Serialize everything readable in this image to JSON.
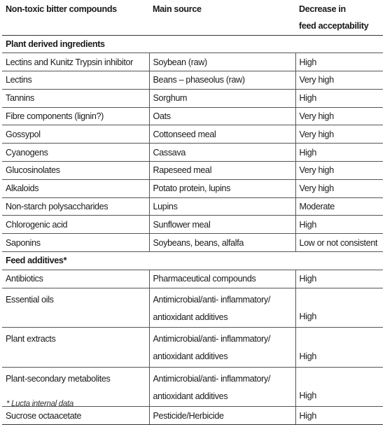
{
  "header": {
    "col1": "Non-toxic bitter compounds",
    "col2": "Main source",
    "col3_line1": "Decrease in",
    "col3_line2": "feed acceptability"
  },
  "sections": [
    {
      "title": "Plant derived ingredients",
      "rows": [
        {
          "compound": "Lectins and Kunitz Trypsin inhibitor",
          "source": "Soybean (raw)",
          "decrease": "High"
        },
        {
          "compound": "Lectins",
          "source": "Beans – phaseolus (raw)",
          "decrease": "Very high"
        },
        {
          "compound": "Tannins",
          "source": "Sorghum",
          "decrease": "High"
        },
        {
          "compound": "Fibre components (lignin?)",
          "source": "Oats",
          "decrease": "Very high"
        },
        {
          "compound": "Gossypol",
          "source": "Cottonseed meal",
          "decrease": "Very high"
        },
        {
          "compound": "Cyanogens",
          "source": "Cassava",
          "decrease": "High"
        },
        {
          "compound": "Glucosinolates",
          "source": "Rapeseed meal",
          "decrease": "Very high"
        },
        {
          "compound": "Alkaloids",
          "source": "Potato protein, lupins",
          "decrease": "Very high"
        },
        {
          "compound": "Non-starch polysaccharides",
          "source": "Lupins",
          "decrease": "Moderate"
        },
        {
          "compound": "Chlorogenic acid",
          "source": "Sunflower meal",
          "decrease": "High"
        },
        {
          "compound": "Saponins",
          "source": "Soybeans, beans, alfalfa",
          "decrease": "Low or not consistent"
        }
      ]
    },
    {
      "title": "Feed additives*",
      "rows": [
        {
          "compound": "Antibiotics",
          "source": "Pharmaceutical compounds",
          "decrease": "High"
        },
        {
          "compound": "Essential oils",
          "source_line1": "Antimicrobial/anti- inflammatory/",
          "source_line2": "antioxidant additives",
          "decrease": "High"
        },
        {
          "compound": "Plant extracts",
          "source_line1": "Antimicrobial/anti- inflammatory/",
          "source_line2": "antioxidant additives",
          "decrease": "High"
        },
        {
          "compound": "Plant-secondary metabolites",
          "source_line1": "Antimicrobial/anti- inflammatory/",
          "source_line2": "antioxidant additives",
          "decrease": "High"
        },
        {
          "compound": "Sucrose octaacetate",
          "source": "Pesticide/Herbicide",
          "decrease": "High"
        }
      ]
    }
  ],
  "footnote": "* Lucta internal data"
}
